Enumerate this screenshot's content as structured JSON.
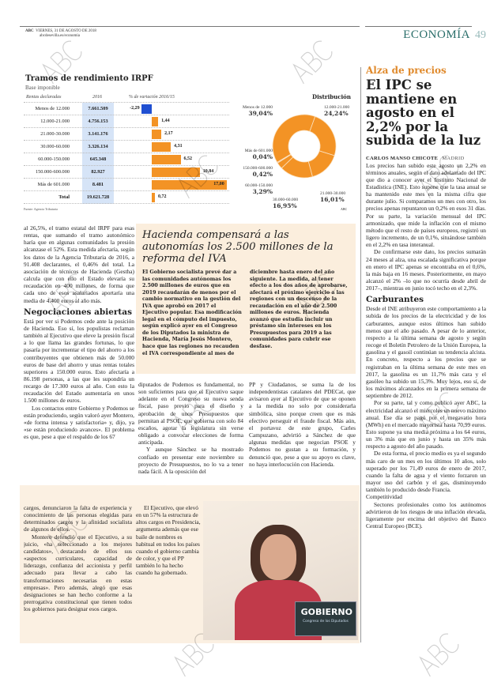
{
  "header": {
    "brand": "ABC",
    "date": "VIERNES, 31 DE AGOSTO DE 2018",
    "url": "abcdesevilla.es/economia",
    "section": "ECONOMÍA",
    "page": "49"
  },
  "watermark": "ABC",
  "chart_data": {
    "type": "table",
    "title": "Tramos de rendimiento IRPF",
    "subtitle": "Base imponible",
    "columns": [
      "Rentas declaradas",
      "2016",
      "% de variación 2016/15"
    ],
    "rows": [
      {
        "label": "Menos de 12.000",
        "value": "7.661.509",
        "change": -2.29,
        "change_label": "-2,29"
      },
      {
        "label": "12.000-21.000",
        "value": "4.756.153",
        "change": 1.44,
        "change_label": "1,44"
      },
      {
        "label": "21.000-30.000",
        "value": "3.141.176",
        "change": 2.17,
        "change_label": "2,17"
      },
      {
        "label": "30.000-60.000",
        "value": "3.326.134",
        "change": 4.31,
        "change_label": "4,31"
      },
      {
        "label": "60.000-150.000",
        "value": "645.348",
        "change": 6.52,
        "change_label": "6,52"
      },
      {
        "label": "150.000-600.000",
        "value": "82.927",
        "change": 10.84,
        "change_label": "10,84"
      },
      {
        "label": "Más de 601.000",
        "value": "8.481",
        "change": 17.0,
        "change_label": "17,00"
      },
      {
        "label": "Total",
        "value": "19.621.728",
        "change": 0.72,
        "change_label": "0,72"
      }
    ],
    "source": "Fuente: Agencia Tributaria",
    "colors": {
      "positive": "#f39325",
      "negative": "#1f4fd1",
      "value_bg": "#d6e4f7"
    },
    "donut": {
      "title": "Distribución",
      "type": "pie",
      "credit": "ABC",
      "slices": [
        {
          "label": "12.000-21.000",
          "value": 24.24,
          "text": "24,24%"
        },
        {
          "label": "21.000-30.000",
          "value": 16.01,
          "text": "16,01%"
        },
        {
          "label": "30.000-60.000",
          "value": 16.95,
          "text": "16,95%"
        },
        {
          "label": "60.000-150.000",
          "value": 3.29,
          "text": "3,29%"
        },
        {
          "label": "150.000-600.000",
          "value": 0.42,
          "text": "0,42%"
        },
        {
          "label": "Más de 601.000",
          "value": 0.04,
          "text": "0,04%"
        },
        {
          "label": "Menos de 12.000",
          "value": 39.04,
          "text": "39,04%"
        }
      ]
    }
  },
  "left_col": {
    "p1": "al 26,5%, el tramo estatal del IRPF para esas rentas, que sumando el tramo autonómico haría que en algunas comunidades la presión alcanzase el 52%. Esta medida afectaría, según los datos de la Agencia Tributaria de 2016, a 91.408 declarantes, el 0,46% del total. La asociación de técnicos de Hacienda (Gestha) calcula que con ello el Estado elevaría su recaudación en 400 millones, de forma que cada uno de esos asalariados aportaría una media de 4.400 euros al año más.",
    "sub": "Negociaciones abiertas",
    "p2": "Está por ver si Podemos cede ante la posición de Hacienda. Eso sí, los populistas reclaman también al Ejecutivo que eleve la presión fiscal a lo que llama las grandes fortunas, lo que pasaría por incrementar el tipo del ahorro a los contribuyentes que obtienen más de 50.000 euros de base del ahorro y unas rentas totales superiores a 150.000 euros. Esto afectaría a 86.198 personas, a las que les supondría un recargo de 17.300 euros al año. Con esto la recaudación del Estado aumentaría en unos 1.500 millones de euros.",
    "p3": "Los contactos entre Gobierno y Podemos se están produciendo, según valoró ayer Montero, «de forma intensa y satisfactoria» y, dijo, ya «se están produciendo avances». El problema es que, pese a que el respaldo de los 67"
  },
  "box": {
    "title": "Hacienda compensará a las autonomías los 2.500 millones de la reforma del IVA",
    "text": "El Gobierno socialista prevé dar a las comunidades autónomas los 2.500 millones de euros que en 2019 recaudarán de menos por el cambio normativo en la gestión del IVA que aprobó en 2017 el Ejecutivo popular. Esa modificación legal en el cómputo del impuesto, según explicó ayer en el Congreso de los Diputados la ministra de Hacienda, María Jesús Montero, hace que las regiones no recauden el IVA correspondiente al mes de diciembre hasta enero del año siguiente. La medida, al tener efecto a los dos años de aprobarse, afectará el próximo ejercicio a las regiones con un descenso de la recaudación en el año de 2.500 millones de euros. Hacienda avanzó que estudia incluir un préstamo sin intereses en los Presupuestos para 2019 a las comunidades para cubrir ese desfase."
  },
  "mid": {
    "c1p1": "diputados de Podemos es fundamental, no son suficientes para que el Ejecutivo saque adelante en el Congreso su nueva senda fiscal, paso previo para el diseño y aprobación de unos Presupuestos que permitan al PSOE, que gobierna con solo 84 escaños, agotar la legislatura sin verse obligado a convocar elecciones de forma anticipada.",
    "c1p2": "Y aunque Sánchez se ha mostrado confiado en presentar este noviembre su proyecto de Presupuestos, no lo va a tener nada fácil. A la oposición del",
    "c2p1": "PP y Ciudadanos, se suma la de los independentistas catalanes del PDECat, que avisaron ayer al Ejecutivo de que se oponen a la medida no solo por considerarla simbólica, sino porque creen que es más efectivo perseguir el fraude fiscal. Más aún, el portavoz de este grupo, Carles Campuzano, advirtió a Sánchez de que algunas medidas que negocian PSOE y Podemos no gustan a su formación, y denunció que, pese a que su apoyo es clave, no haya interlocución con Hacienda."
  },
  "bottom": {
    "c1p1": "cargos, denunciaron la falta de experiencia y conocimiento de las personas elegidas para determinados cargos y la afinidad socialista de algunos de ellos.",
    "c1p2": "Montero defendió que el Ejecutivo, a su juicio, «ha seleccionado a los mejores candidatos», destacando de ellos sus «aspectos curriculares, capacidad de liderazgo, confianza del accionista y perfil adecuado para llevar a cabo las transformaciones necesarias en estas empresas». Pero además, alegó que esas designaciones se han hecho conforme a la prerrogativa constitucional que tienen todos los gobiernos para designar esos cargos.",
    "c2p1": "El Ejecutivo, que elevó en un 57% la estructura de altos cargos en Presidencia, argumenta además que ese baile de nombres es habitual en todos los países cuando el gobierno cambia de color, y que el PP también lo ha hecho cuando ha gobernado.",
    "photo_sign": "GOBIERNO",
    "photo_sign_sub": "Congreso de los Diputados"
  },
  "right": {
    "kicker": "Alza de precios",
    "headline": "El IPC se mantiene en agosto en el 2,2% por la subida de la luz",
    "byline": "CARLOS MANSO CHICOTE",
    "place": "MADRID",
    "p1": "Los precios han subido este agosto un 2,2% en términos anuales, según el dato adelantado del IPC que dio a conocer ayer el Instituto Nacional de Estadística (INE). Esto supone que la tasa anual se ha mantenido este mes en la misma cifra que durante julio. Si comparamos un mes con otro, los precios apenas repuntaron un 0,2% en esos 31 días. Por su parte, la variación mensual del IPC armonizado, que mide la inflación con el mismo método que el resto de países europeos, registró un ligero incremento, de un 0,1%, situándose también en el 2,2% en tasa interanual.",
    "p2": "De confirmarse este dato, los precios sumarán 24 meses al alza, una escalada significativa porque en enero el IPC apenas se encontraba en el 0,6%, la más baja en 16 meses. Posteriormente, en mayo alcanzó el 2% –lo que no ocurría desde abril de 2017–, mientras en junio tocó techo en el 2,3%.",
    "sub": "Carburantes",
    "p3": "Desde el INE atribuyeron este comportamiento a la subida de los precios de la electricidad y de los carburantes, aunque estos últimos han subido menos que el año pasado. A pesar de lo anterior, respecto a la última semana de agosto y según recoge el Boletín Petrolero de la Unión Europea, la gasolina y el gasoil continúan su tendencia alcista. En concreto, respecto a los precios que se registraban en la última semana de este mes en 2017, la gasolina es un 11,7% más cara y el gasóleo ha subido un 15,3%. Muy lejos, eso sí, de los máximos alcanzados en la primera semana de septiembre de 2012.",
    "p4": "Por su parte, tal y como publicó ayer ABC, la electricidad alcanzó el miércoles un nuevo máximo anual. Ese día se pagó por el megavatio hora (MWh) en el mercado mayorista hasta 70,99 euros. Esto supone ya una media próxima a los 64 euros, un 3% más que en junio y hasta un 35% más respecto a agosto del año pasado.",
    "p5": "De esta forma, el precio medio es ya el segundo más caro de un mes en los últimos 10 años, solo superado por los 71,49 euros de enero de 2017, cuando la falta de agua y el viento forzaron un mayor uso del carbón y el gas, disminuyendo también lo producido desde Francia.",
    "p5b": "Competitividad",
    "p6": "Sectores profesionales como los autónomos advirtieron de los riesgos de una inflación elevada, ligeramente por encima del objetivo del Banco Central Europeo (BCE)."
  }
}
